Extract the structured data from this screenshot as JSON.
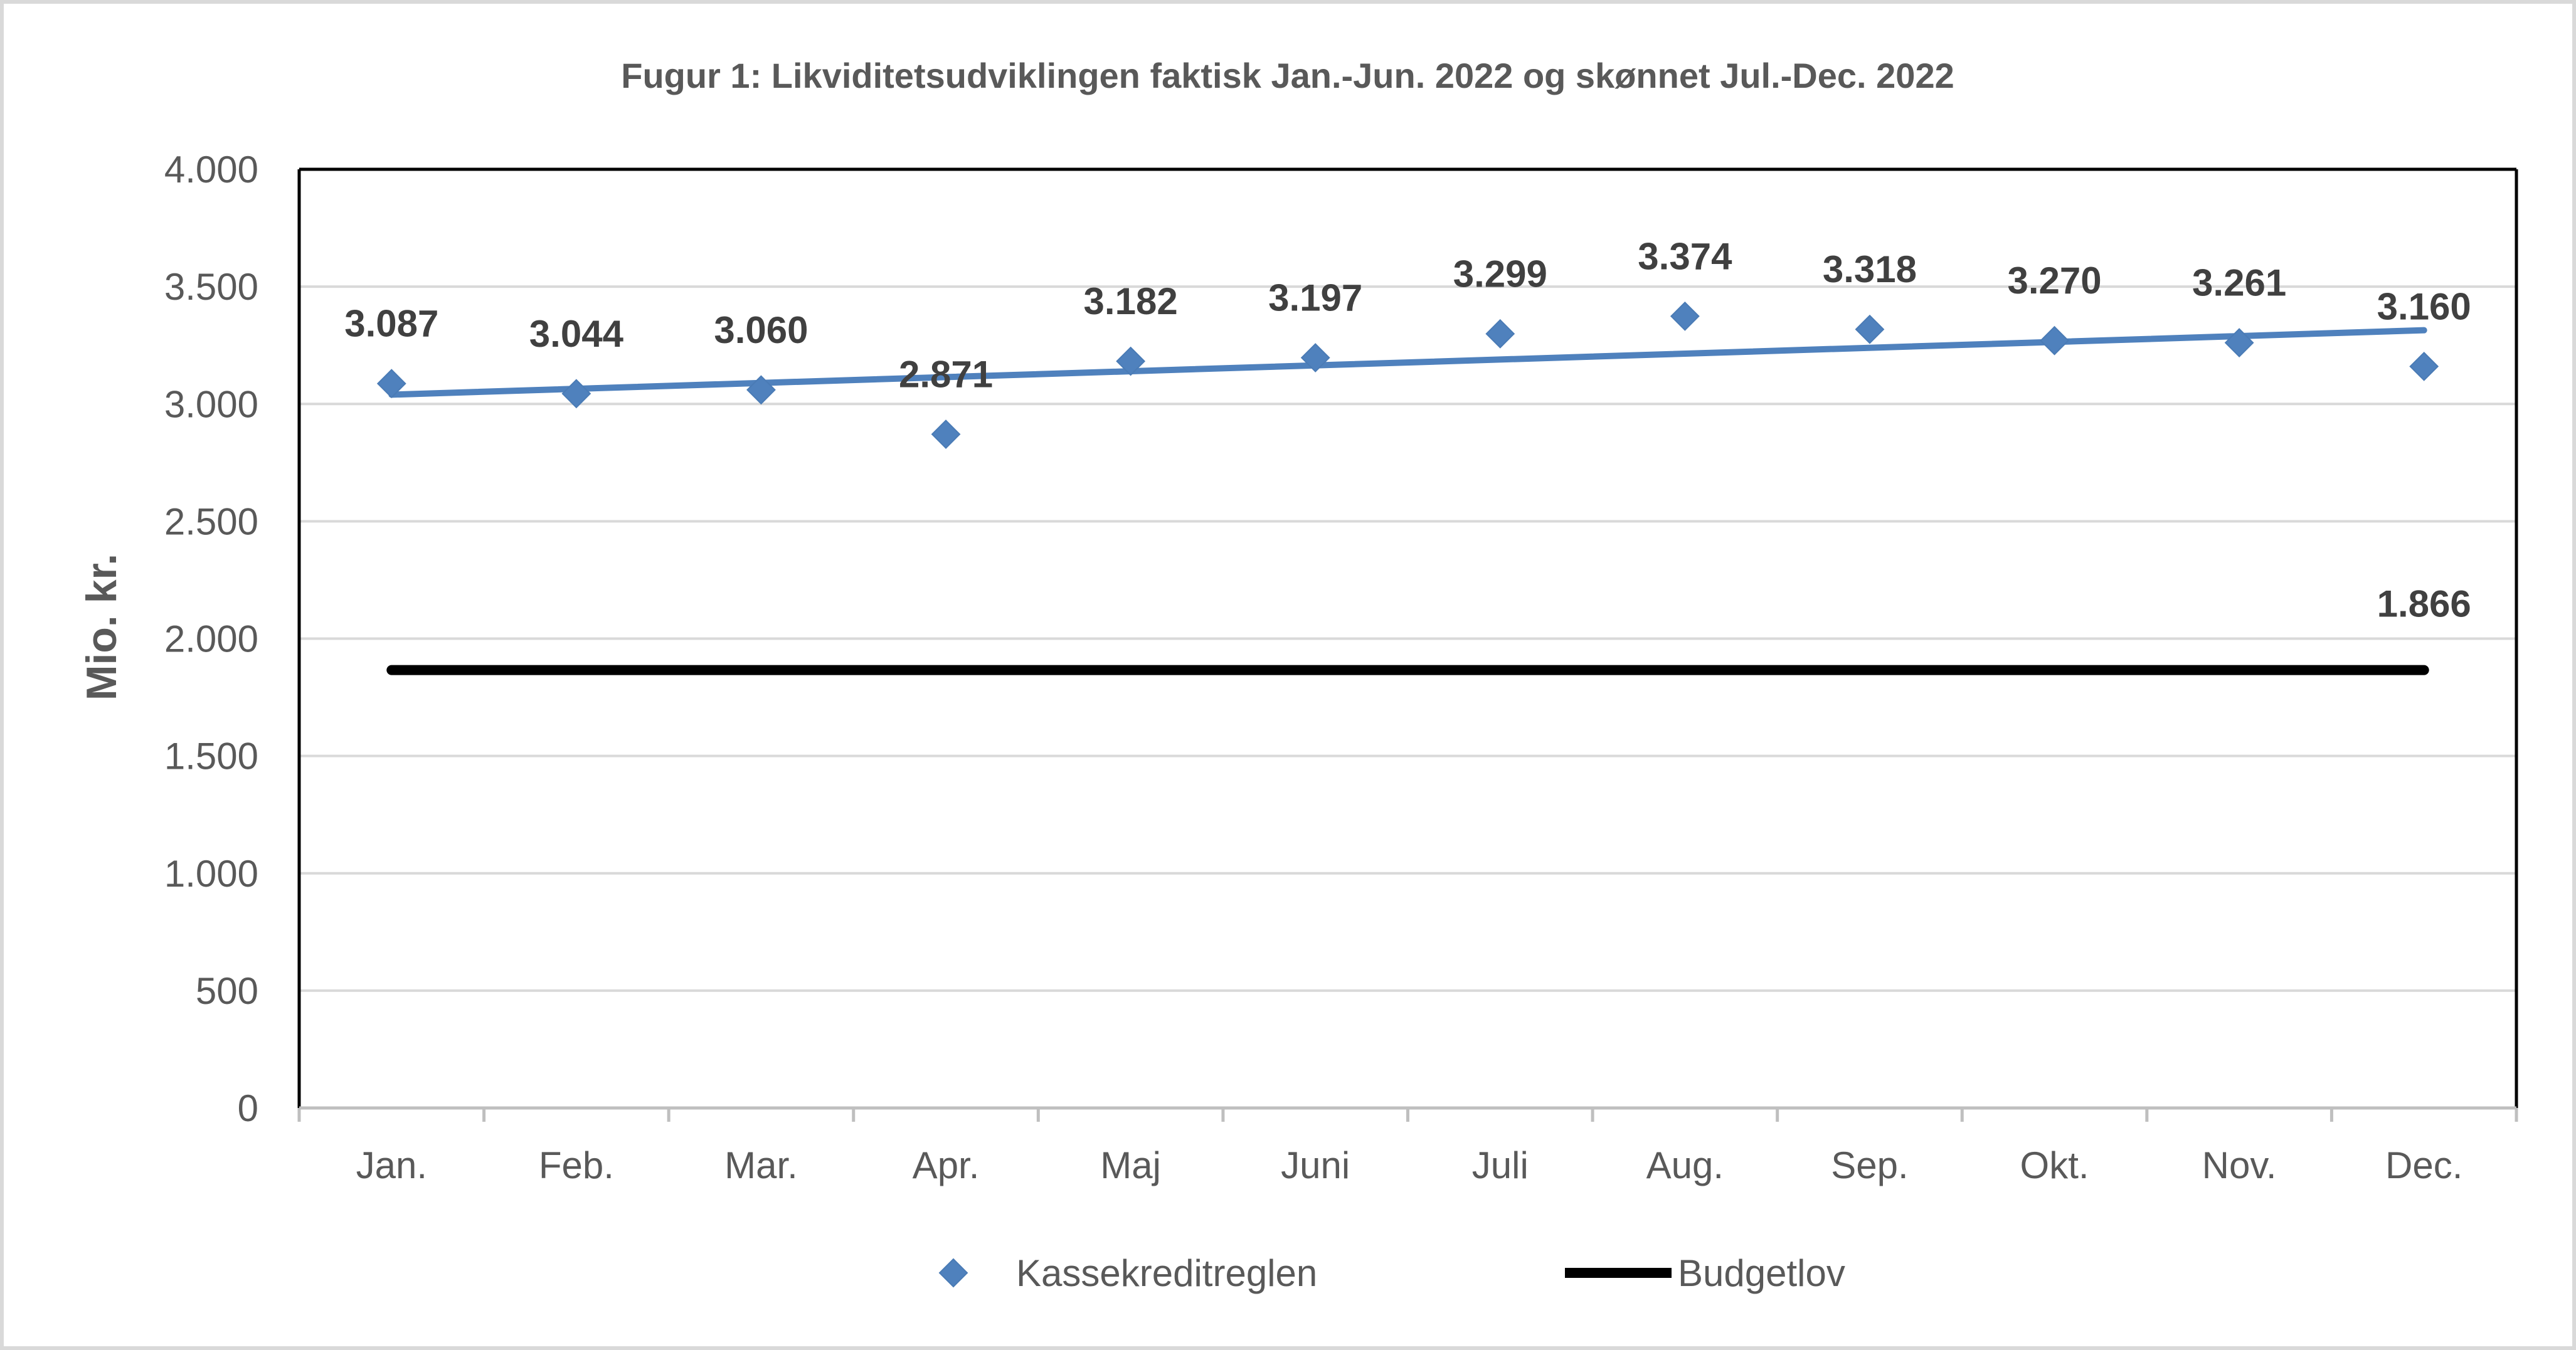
{
  "chart_data": {
    "type": "scatter",
    "title": "Fugur 1: Likviditetsudviklingen faktisk Jan.-Jun. 2022 og skønnet Jul.-Dec. 2022",
    "xlabel": "",
    "ylabel": "Mio. kr.",
    "categories": [
      "Jan.",
      "Feb.",
      "Mar.",
      "Apr.",
      "Maj",
      "Juni",
      "Juli",
      "Aug.",
      "Sep.",
      "Okt.",
      "Nov.",
      "Dec."
    ],
    "ylim": [
      0,
      4000
    ],
    "yticks": [
      0,
      500,
      1000,
      1500,
      2000,
      2500,
      3000,
      3500,
      4000
    ],
    "ytick_labels": [
      "0",
      "500",
      "1.000",
      "1.500",
      "2.000",
      "2.500",
      "3.000",
      "3.500",
      "4.000"
    ],
    "grid": true,
    "legend_position": "bottom",
    "series": [
      {
        "name": "Kassekreditreglen",
        "kind": "markers",
        "marker": "diamond",
        "color": "#4F81BD",
        "values": [
          3087,
          3044,
          3060,
          2871,
          3182,
          3197,
          3299,
          3374,
          3318,
          3270,
          3261,
          3160
        ],
        "labels": [
          "3.087",
          "3.044",
          "3.060",
          "2.871",
          "3.182",
          "3.197",
          "3.299",
          "3.374",
          "3.318",
          "3.270",
          "3.261",
          "3.160"
        ]
      },
      {
        "name": "Budgetlov",
        "kind": "line",
        "color": "#000000",
        "values": [
          1866,
          1866,
          1866,
          1866,
          1866,
          1866,
          1866,
          1866,
          1866,
          1866,
          1866,
          1866
        ],
        "end_label": "1.866"
      }
    ],
    "trendline": {
      "of_series": "Kassekreditreglen",
      "type": "linear",
      "color": "#4F81BD"
    }
  }
}
